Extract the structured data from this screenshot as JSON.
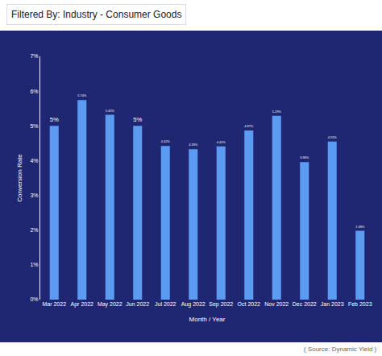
{
  "chart_data": {
    "type": "bar",
    "title": "Filtered By: Industry - Consumer Goods",
    "x_label": "Month / Year",
    "y_label": "Conversion Rate",
    "categories": [
      "Mar 2022",
      "Apr 2022",
      "May 2022",
      "Jun 2022",
      "Jul 2022",
      "Aug 2022",
      "Sep 2022",
      "Oct 2022",
      "Nov 2022",
      "Dec 2022",
      "Jan 2023",
      "Feb 2023"
    ],
    "values": [
      5,
      5.74,
      5.32,
      5,
      4.42,
      4.33,
      4.41,
      4.87,
      5.29,
      3.96,
      4.55,
      1.98
    ],
    "value_labels": [
      "5%",
      "5.74%",
      "5.32%",
      "5%",
      "4.42%",
      "4.33%",
      "4.41%",
      "4.87%",
      "5.29%",
      "3.96%",
      "4.55%",
      "1.98%"
    ],
    "color": "#5b9cf2",
    "ylim": [
      0,
      7
    ],
    "yticks": [
      {
        "value": 0,
        "label": "0%"
      },
      {
        "value": 1,
        "label": "1%"
      },
      {
        "value": 2,
        "label": "2%"
      },
      {
        "value": 3,
        "label": "3%"
      },
      {
        "value": 4,
        "label": "4%"
      },
      {
        "value": 5,
        "label": "5%"
      },
      {
        "value": 6,
        "label": "6%"
      },
      {
        "value": 7,
        "label": "7%"
      }
    ],
    "grid": false,
    "data_labels": true,
    "annotations": [
      "( Source: Dynamic Yield )"
    ]
  }
}
